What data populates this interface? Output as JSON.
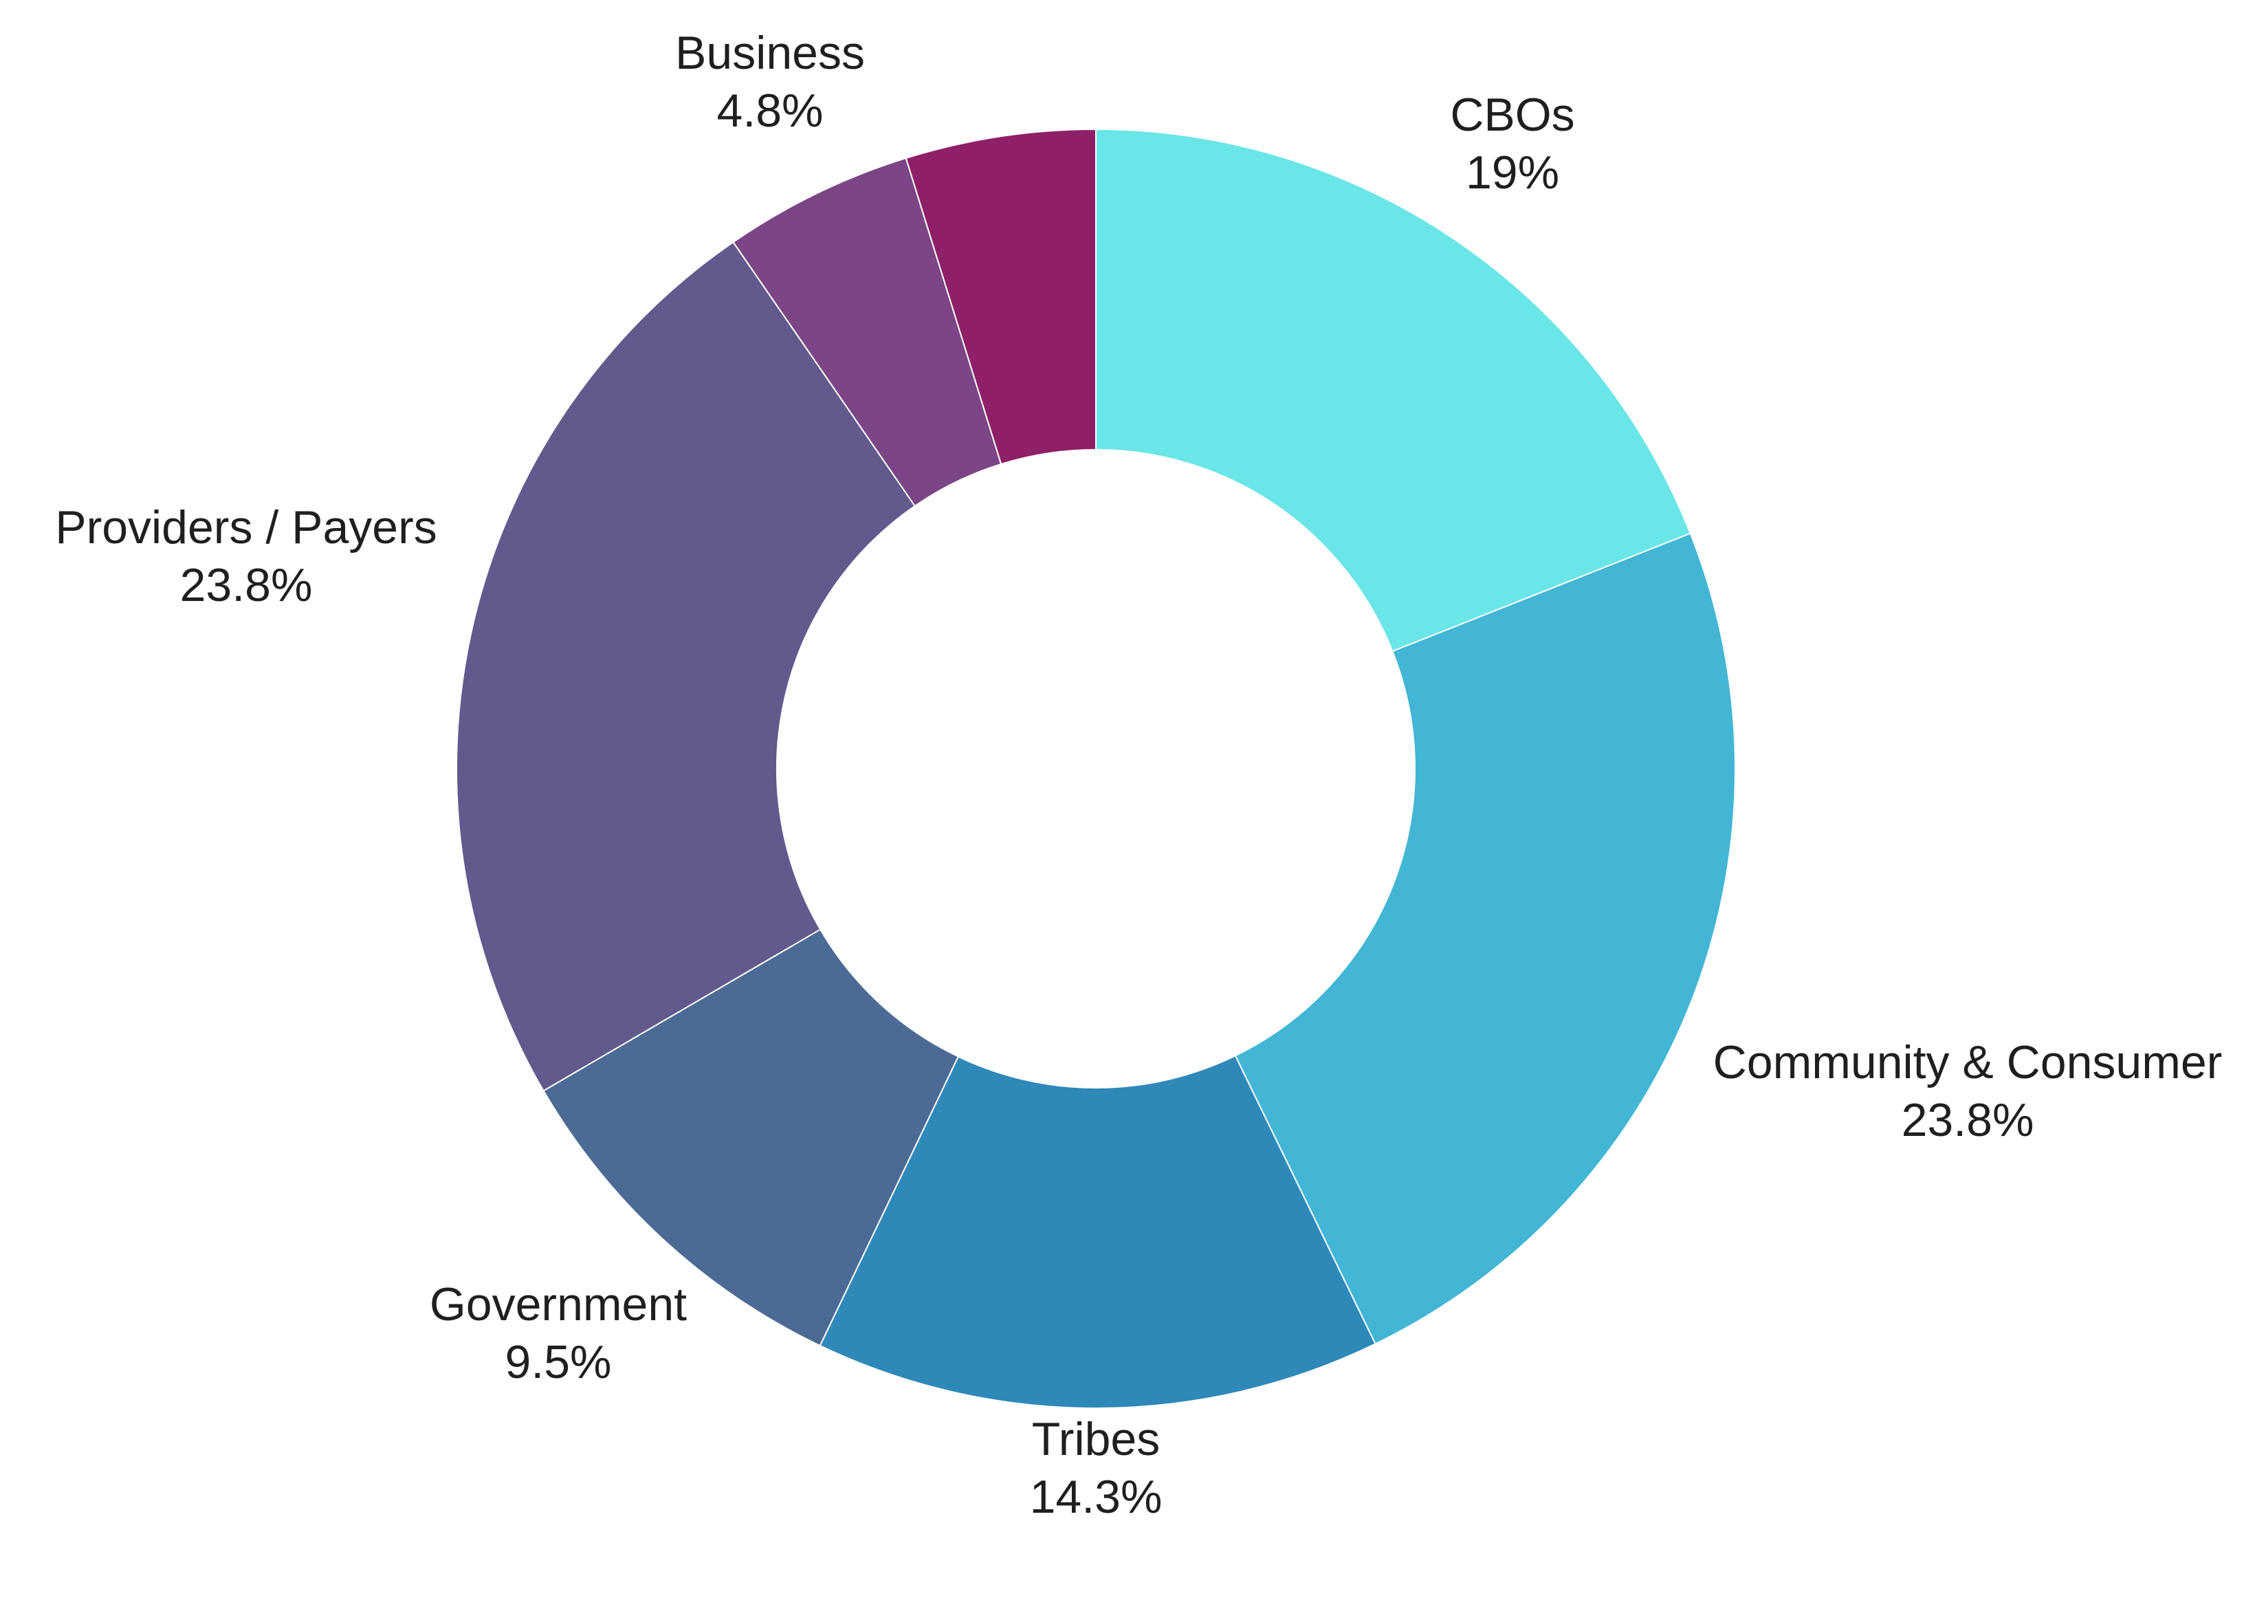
{
  "chart_data": {
    "type": "pie",
    "donut": true,
    "legend": "none",
    "slices": [
      {
        "label": "CBOs",
        "value": 19.0,
        "value_label": "19%",
        "color": "#6ae5e8"
      },
      {
        "label": "Community & Consumer",
        "value": 23.8,
        "value_label": "23.8%",
        "color": "#42b6d4"
      },
      {
        "label": "Tribes",
        "value": 14.3,
        "value_label": "14.3%",
        "color": "#2e89b9"
      },
      {
        "label": "Government",
        "value": 9.5,
        "value_label": "9.5%",
        "color": "#4b6b94"
      },
      {
        "label": "Providers / Payers",
        "value": 23.8,
        "value_label": "23.8%",
        "color": "#625a8d"
      },
      {
        "label": "Business",
        "value": 4.8,
        "value_label": "4.8%",
        "color": "#7c4586"
      },
      {
        "label": "",
        "value": 4.8,
        "value_label": "",
        "color": "#8d2068"
      }
    ]
  }
}
